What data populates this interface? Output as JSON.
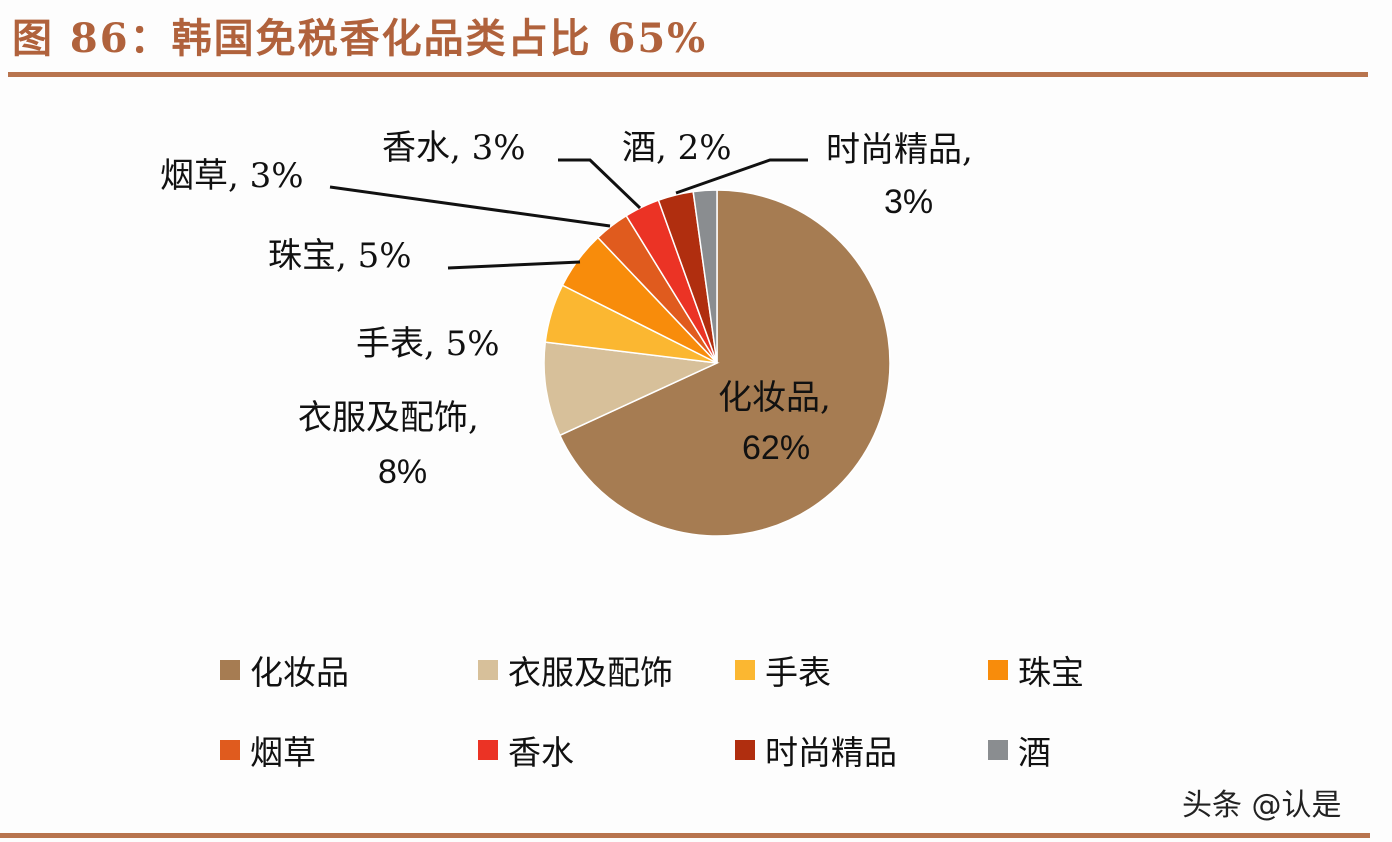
{
  "title": "图 86：韩国免税香化品类占比 65%",
  "watermark": "头条 @认是",
  "chart_data": {
    "type": "pie",
    "title": "图 86：韩国免税香化品类占比 65%",
    "categories": [
      "化妆品",
      "衣服及配饰",
      "手表",
      "珠宝",
      "烟草",
      "香水",
      "时尚精品",
      "酒"
    ],
    "values": [
      62,
      8,
      5,
      5,
      3,
      3,
      3,
      2
    ],
    "colors": [
      "#a67c52",
      "#d7c09a",
      "#fbb731",
      "#f88c0b",
      "#e05b1e",
      "#eb3325",
      "#b02e0f",
      "#8a8d90"
    ],
    "data_labels": [
      {
        "name": "化妆品",
        "pct": "62%"
      },
      {
        "name": "衣服及配饰",
        "pct": "8%"
      },
      {
        "name": "手表",
        "pct": "5%"
      },
      {
        "name": "珠宝",
        "pct": "5%"
      },
      {
        "name": "烟草",
        "pct": "3%"
      },
      {
        "name": "香水",
        "pct": "3%"
      },
      {
        "name": "时尚精品",
        "pct": "3%"
      },
      {
        "name": "酒",
        "pct": "2%"
      }
    ],
    "legend_position": "bottom"
  },
  "labels": {
    "cosmetics_name": "化妆品,",
    "cosmetics_pct": "62%",
    "clothing_name": "衣服及配饰,",
    "clothing_pct": "8%",
    "watch": "手表, 5%",
    "jewelry": "珠宝, 5%",
    "tobacco": "烟草, 3%",
    "perfume": "香水, 3%",
    "liquor": "酒, 2%",
    "fashion_name": "时尚精品,",
    "fashion_pct": "3%"
  },
  "legend": [
    {
      "label": "化妆品",
      "color": "#a67c52"
    },
    {
      "label": "衣服及配饰",
      "color": "#d7c09a"
    },
    {
      "label": "手表",
      "color": "#fbb731"
    },
    {
      "label": "珠宝",
      "color": "#f88c0b"
    },
    {
      "label": "烟草",
      "color": "#e05b1e"
    },
    {
      "label": "香水",
      "color": "#eb3325"
    },
    {
      "label": "时尚精品",
      "color": "#b02e0f"
    },
    {
      "label": "酒",
      "color": "#8a8d90"
    }
  ]
}
